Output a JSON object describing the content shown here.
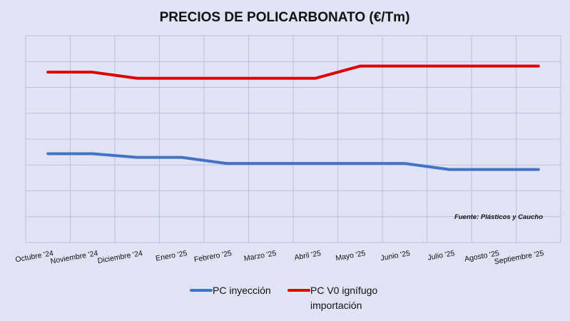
{
  "chart_data": {
    "type": "line",
    "title": "PRECIOS DE POLICARBONATO (€/Tm)",
    "categories": [
      "Octubre '24",
      "Noviembre '24",
      "Diciembre '24",
      "Enero '25",
      "Febrero '25",
      "Marzo '25",
      "Abril '25",
      "Mayo '25",
      "Junio '25",
      "Julio '25",
      "Agosto '25",
      "Septiembre '25"
    ],
    "series": [
      {
        "name": "PC inyección",
        "color": "#4472c4",
        "values": [
          3.65,
          3.65,
          3.5,
          3.5,
          3.25,
          3.25,
          3.25,
          3.25,
          3.25,
          3.0,
          3.0,
          3.0
        ]
      },
      {
        "name": "PC V0 ignífugo importación",
        "color": "#e00000",
        "values": [
          7.0,
          7.0,
          6.75,
          6.75,
          6.75,
          6.75,
          6.75,
          7.25,
          7.25,
          7.25,
          7.25,
          7.25
        ]
      }
    ],
    "ylim": [
      0,
      8.5
    ],
    "yticks_visible": false,
    "grid": true,
    "legend": "bottom",
    "annotation": "Fuente: Plásticos y Caucho"
  },
  "legend_lines": [
    [
      "PC inyección"
    ],
    [
      "PC V0 ignífugo",
      "importación"
    ]
  ]
}
